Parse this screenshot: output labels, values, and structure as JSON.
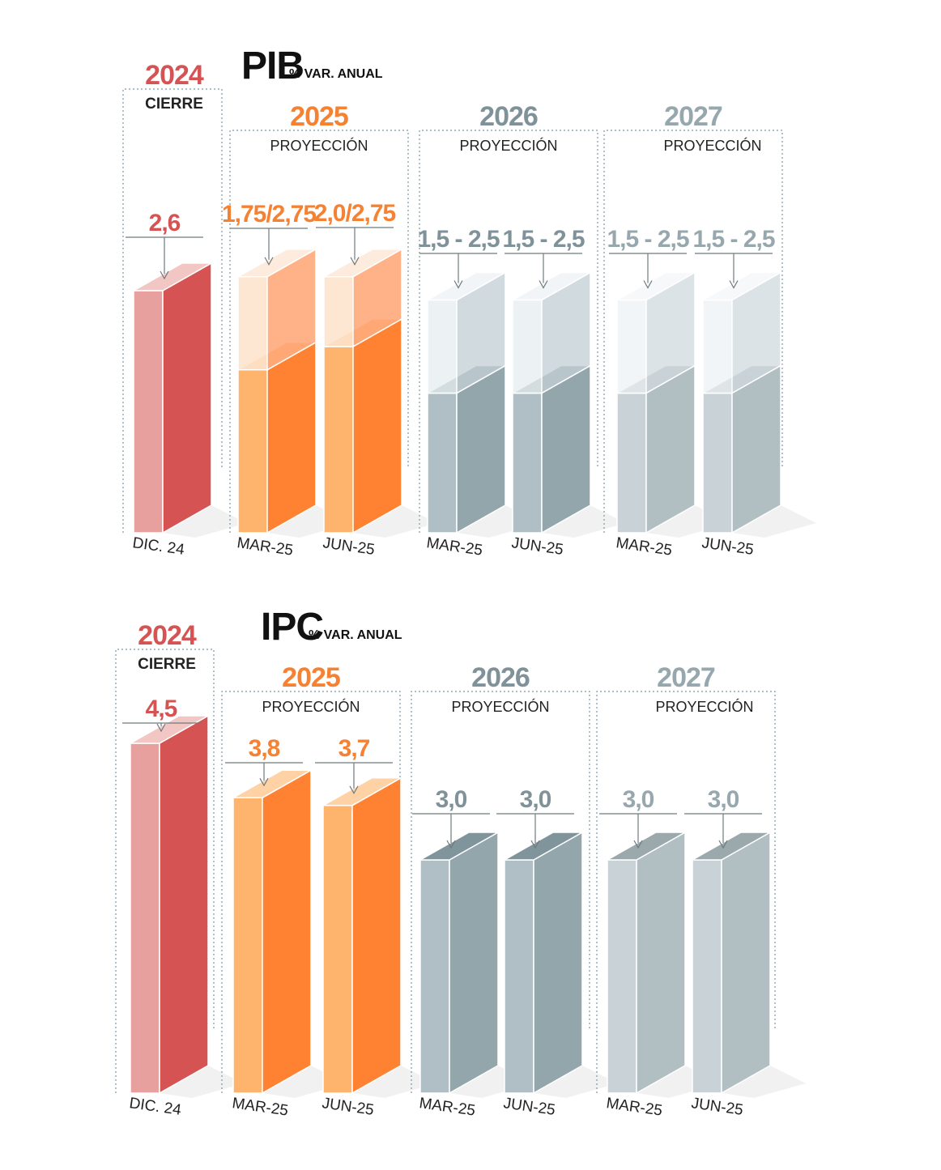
{
  "colors": {
    "y2024": "#d55353",
    "y2025": "#f58233",
    "y2026": "#7f929a",
    "y2027": "#97a7ae"
  },
  "chart_data": [
    {
      "type": "bar",
      "title": "PIB",
      "subtitle": "% VAR. ANUAL",
      "groups": [
        {
          "year": "2024",
          "label": "CIERRE",
          "bars": [
            {
              "category": "DIC. 24",
              "value": 2.6,
              "label": "2,6"
            }
          ]
        },
        {
          "year": "2025",
          "label": "PROYECCIÓN",
          "bars": [
            {
              "category": "MAR-25",
              "low": 1.75,
              "high": 2.75,
              "label": "1,75/2,75"
            },
            {
              "category": "JUN-25",
              "low": 2.0,
              "high": 2.75,
              "label": "2,0/2,75"
            }
          ]
        },
        {
          "year": "2026",
          "label": "PROYECCIÓN",
          "bars": [
            {
              "category": "MAR-25",
              "low": 1.5,
              "high": 2.5,
              "label": "1,5 - 2,5"
            },
            {
              "category": "JUN-25",
              "low": 1.5,
              "high": 2.5,
              "label": "1,5 - 2,5"
            }
          ]
        },
        {
          "year": "2027",
          "label": "PROYECCIÓN",
          "bars": [
            {
              "category": "MAR-25",
              "low": 1.5,
              "high": 2.5,
              "label": "1,5 - 2,5"
            },
            {
              "category": "JUN-25",
              "low": 1.5,
              "high": 2.5,
              "label": "1,5 - 2,5"
            }
          ]
        }
      ]
    },
    {
      "type": "bar",
      "title": "IPC",
      "subtitle": "% VAR. ANUAL",
      "groups": [
        {
          "year": "2024",
          "label": "CIERRE",
          "bars": [
            {
              "category": "DIC. 24",
              "value": 4.5,
              "label": "4,5"
            }
          ]
        },
        {
          "year": "2025",
          "label": "PROYECCIÓN",
          "bars": [
            {
              "category": "MAR-25",
              "value": 3.8,
              "label": "3,8"
            },
            {
              "category": "JUN-25",
              "value": 3.7,
              "label": "3,7"
            }
          ]
        },
        {
          "year": "2026",
          "label": "PROYECCIÓN",
          "bars": [
            {
              "category": "MAR-25",
              "value": 3.0,
              "label": "3,0"
            },
            {
              "category": "JUN-25",
              "value": 3.0,
              "label": "3,0"
            }
          ]
        },
        {
          "year": "2027",
          "label": "PROYECCIÓN",
          "bars": [
            {
              "category": "MAR-25",
              "value": 3.0,
              "label": "3,0"
            },
            {
              "category": "JUN-25",
              "value": 3.0,
              "label": "3,0"
            }
          ]
        }
      ]
    }
  ]
}
